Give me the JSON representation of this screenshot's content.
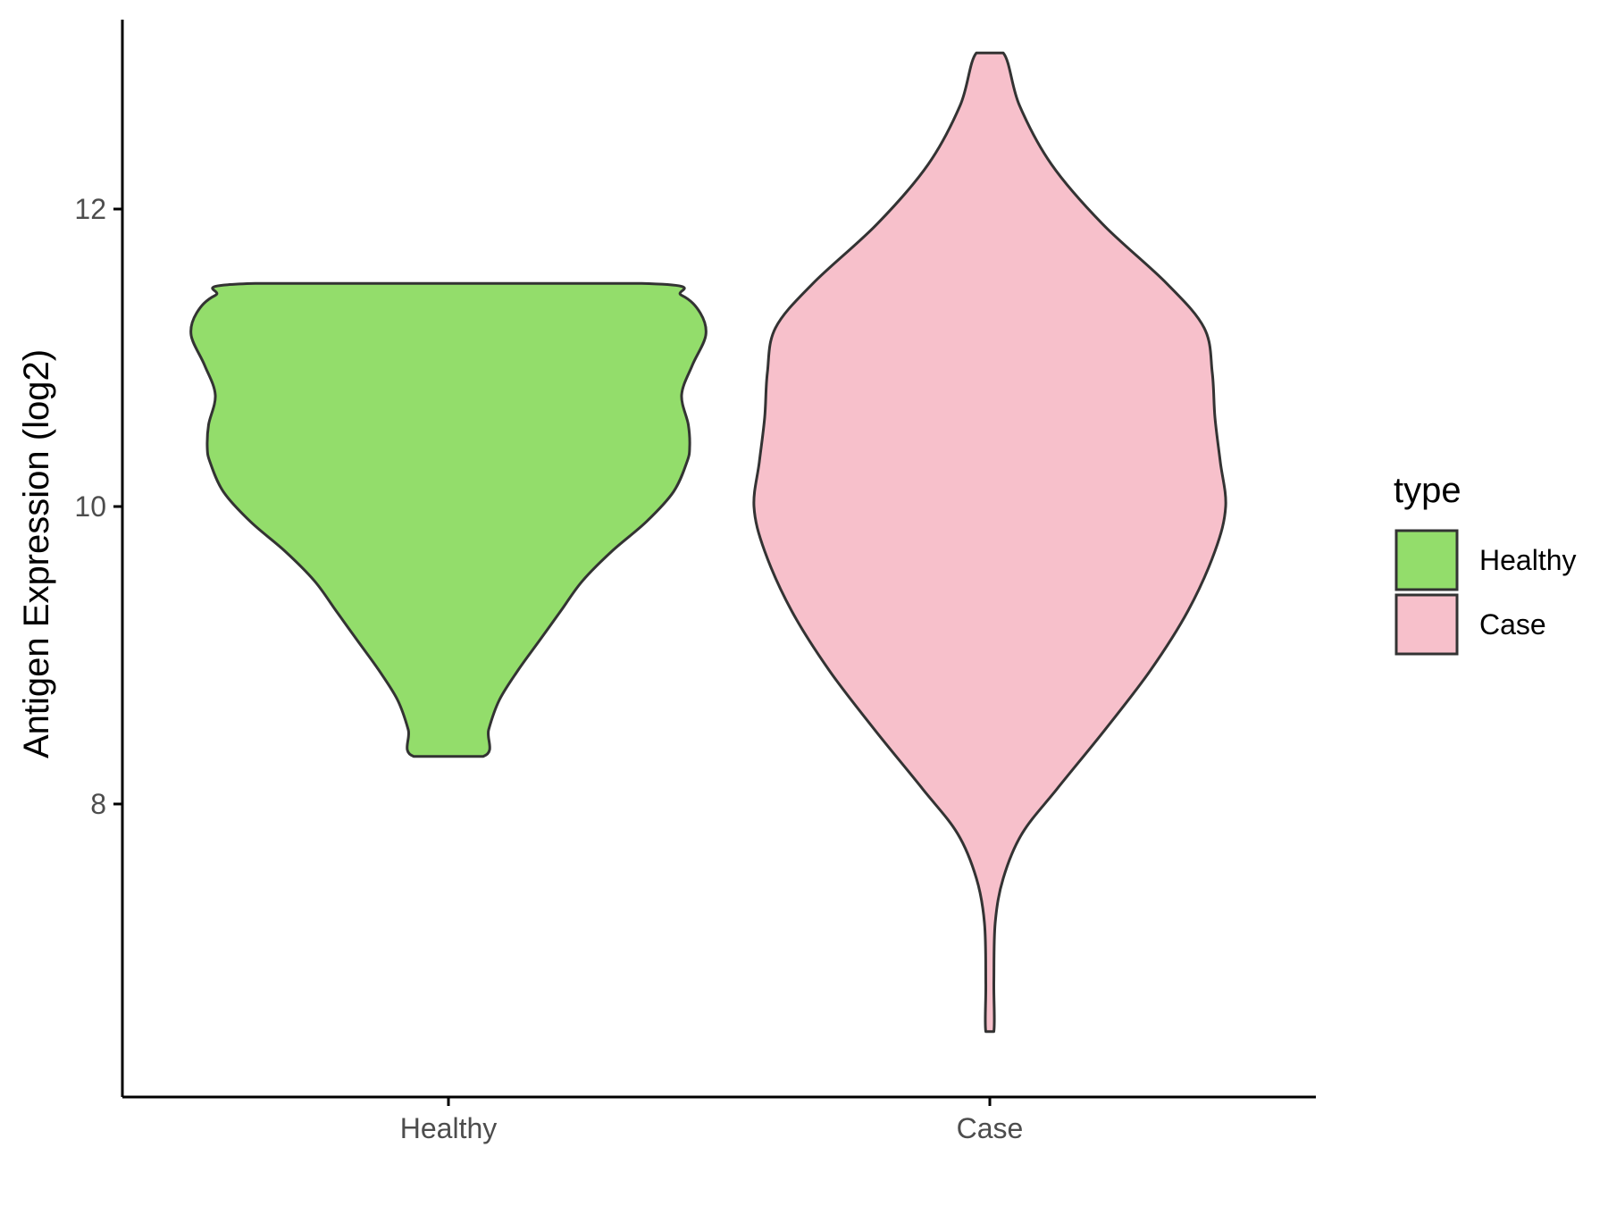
{
  "chart_data": {
    "type": "violin",
    "title": "",
    "xlabel": "",
    "ylabel": "Antigen Expression (log2)",
    "categories": [
      "Healthy",
      "Case"
    ],
    "ylim": [
      6.0,
      13.25
    ],
    "yticks": [
      8,
      10,
      12
    ],
    "ytick_labels": [
      "8",
      "10",
      "12"
    ],
    "grid": false,
    "legend": {
      "title": "type",
      "placement": "right",
      "entries": [
        {
          "label": "Healthy",
          "color": "#93DD6B"
        },
        {
          "label": "Case",
          "color": "#F7C0CB"
        }
      ]
    },
    "series": [
      {
        "name": "Healthy",
        "color": "#93DD6B",
        "ymin": 8.32,
        "ymax": 11.5,
        "density": [
          [
            8.32,
            0.13
          ],
          [
            8.5,
            0.15
          ],
          [
            8.7,
            0.19
          ],
          [
            8.9,
            0.26
          ],
          [
            9.1,
            0.34
          ],
          [
            9.3,
            0.42
          ],
          [
            9.5,
            0.5
          ],
          [
            9.7,
            0.61
          ],
          [
            9.9,
            0.74
          ],
          [
            10.1,
            0.84
          ],
          [
            10.3,
            0.89
          ],
          [
            10.4,
            0.9
          ],
          [
            10.55,
            0.895
          ],
          [
            10.75,
            0.87
          ],
          [
            10.95,
            0.91
          ],
          [
            11.15,
            0.96
          ],
          [
            11.3,
            0.94
          ],
          [
            11.42,
            0.87
          ],
          [
            11.5,
            0.72
          ]
        ]
      },
      {
        "name": "Case",
        "color": "#F7C0CB",
        "ymin": 6.47,
        "ymax": 13.05,
        "density": [
          [
            6.47,
            0.015
          ],
          [
            6.8,
            0.015
          ],
          [
            7.2,
            0.02
          ],
          [
            7.5,
            0.05
          ],
          [
            7.8,
            0.12
          ],
          [
            8.1,
            0.25
          ],
          [
            8.5,
            0.43
          ],
          [
            8.9,
            0.6
          ],
          [
            9.3,
            0.74
          ],
          [
            9.7,
            0.84
          ],
          [
            10.0,
            0.88
          ],
          [
            10.3,
            0.86
          ],
          [
            10.6,
            0.84
          ],
          [
            10.9,
            0.83
          ],
          [
            11.2,
            0.8
          ],
          [
            11.5,
            0.66
          ],
          [
            11.9,
            0.42
          ],
          [
            12.3,
            0.23
          ],
          [
            12.7,
            0.11
          ],
          [
            13.05,
            0.05
          ]
        ]
      }
    ]
  }
}
